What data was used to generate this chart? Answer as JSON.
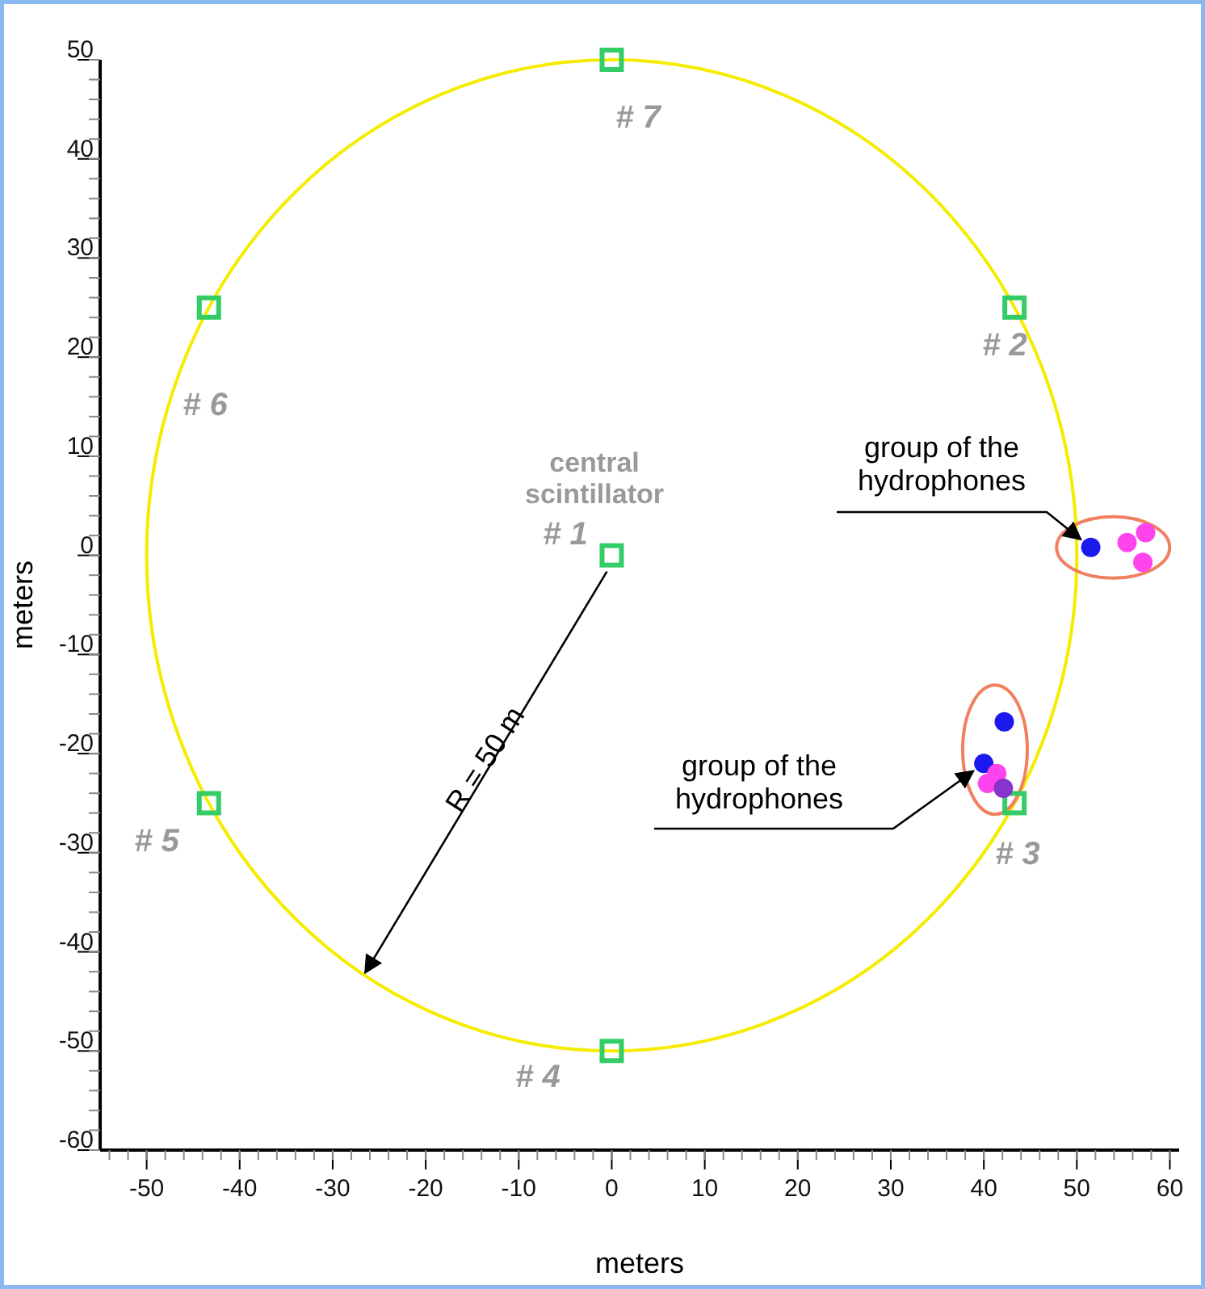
{
  "chart_data": {
    "type": "scatter",
    "xlabel": "meters",
    "ylabel": "meters",
    "xlim": [
      -55,
      61
    ],
    "ylim": [
      -60,
      50
    ],
    "xticks": [
      -50,
      -40,
      -30,
      -20,
      -10,
      0,
      10,
      20,
      30,
      40,
      50,
      60
    ],
    "yticks": [
      -60,
      -50,
      -40,
      -30,
      -20,
      -10,
      0,
      10,
      20,
      30,
      40,
      50
    ],
    "series": [
      {
        "color": "#33cc66",
        "marker": "square",
        "x": [
          0,
          43.3,
          43.3,
          0,
          -43.3,
          -43.3,
          0
        ],
        "values": [
          0,
          25,
          -25,
          -50,
          -25,
          25,
          50
        ]
      },
      {
        "color": "#1a1aee",
        "marker": "circle",
        "x": [
          51.5,
          42.2,
          40
        ],
        "values": [
          0.8,
          -16.8,
          -21
        ]
      },
      {
        "color": "#ff44ee",
        "marker": "circle",
        "x": [
          55.4,
          57.4,
          57.1,
          41.4,
          40.4
        ],
        "values": [
          1.3,
          2.3,
          -0.7,
          -22,
          -23
        ]
      },
      {
        "color": "#8833cc",
        "marker": "circle",
        "x": [
          42.1
        ],
        "values": [
          -23.5
        ]
      }
    ],
    "annotations": [
      "# 1",
      "# 2",
      "# 3",
      "# 4",
      "# 5",
      "# 6",
      "# 7",
      "central\nscintillator",
      {
        "text": "group of the\nhydrophones",
        "x": 51.5,
        "y": 0.8
      },
      {
        "text": "group of the\nhydrophones",
        "x": 40,
        "y": -21
      },
      "R = 50 m"
    ]
  }
}
